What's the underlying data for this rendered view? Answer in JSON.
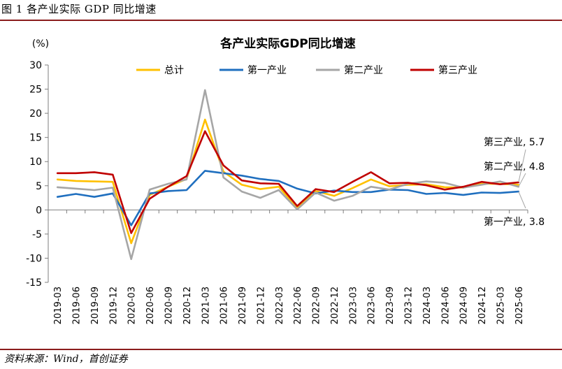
{
  "figure": {
    "caption": "图 1  各产业实际 GDP 同比增速",
    "source": "资料来源：Wind，首创证券"
  },
  "chart_data": {
    "type": "line",
    "title": "各产业实际GDP同比增速",
    "ylabel": "(%)",
    "xlabel": "",
    "ylim": [
      -15,
      30
    ],
    "yticks": [
      -15,
      -10,
      -5,
      0,
      5,
      10,
      15,
      20,
      25,
      30
    ],
    "grid": false,
    "legend_position": "top",
    "x": [
      "2019-03",
      "2019-06",
      "2019-09",
      "2019-12",
      "2020-03",
      "2020-06",
      "2020-09",
      "2020-12",
      "2021-03",
      "2021-06",
      "2021-09",
      "2021-12",
      "2022-03",
      "2022-06",
      "2022-09",
      "2022-12",
      "2023-03",
      "2023-06",
      "2023-09",
      "2023-12",
      "2024-03",
      "2024-06",
      "2024-09",
      "2024-12",
      "2025-03",
      "2025-06"
    ],
    "series": [
      {
        "name": "总计",
        "color": "#ffc000",
        "values": [
          6.3,
          6.0,
          5.9,
          5.8,
          -6.9,
          3.1,
          4.8,
          6.4,
          18.7,
          7.9,
          5.2,
          4.3,
          4.8,
          0.4,
          3.9,
          2.9,
          4.5,
          6.3,
          4.9,
          5.2,
          5.3,
          4.7,
          4.6,
          5.4,
          5.4,
          5.2
        ]
      },
      {
        "name": "第一产业",
        "color": "#1f6fbf",
        "values": [
          2.7,
          3.3,
          2.7,
          3.4,
          -3.2,
          3.4,
          3.9,
          4.1,
          8.1,
          7.6,
          7.1,
          6.4,
          6.0,
          4.4,
          3.4,
          4.0,
          3.7,
          3.7,
          4.2,
          4.1,
          3.3,
          3.5,
          3.1,
          3.6,
          3.5,
          3.8
        ]
      },
      {
        "name": "第二产业",
        "color": "#a6a6a6",
        "values": [
          4.7,
          4.4,
          4.1,
          4.6,
          -10.2,
          4.2,
          5.4,
          6.3,
          24.8,
          6.7,
          3.8,
          2.5,
          4.1,
          0.1,
          3.6,
          1.9,
          2.9,
          4.8,
          4.2,
          5.4,
          5.9,
          5.6,
          4.6,
          5.2,
          5.9,
          4.8
        ]
      },
      {
        "name": "第三产业",
        "color": "#c00000",
        "values": [
          7.6,
          7.6,
          7.8,
          7.3,
          -4.8,
          2.3,
          4.8,
          7.0,
          16.3,
          9.2,
          6.1,
          5.5,
          5.4,
          0.8,
          4.3,
          3.7,
          5.8,
          7.8,
          5.5,
          5.6,
          5.1,
          4.2,
          4.8,
          5.8,
          5.3,
          5.7
        ]
      }
    ],
    "annotations": [
      {
        "text": "第三产业, 5.7",
        "series": "第三产业"
      },
      {
        "text": "第二产业, 4.8",
        "series": "第二产业"
      },
      {
        "text": "第一产业, 3.8",
        "series": "第一产业"
      }
    ]
  }
}
